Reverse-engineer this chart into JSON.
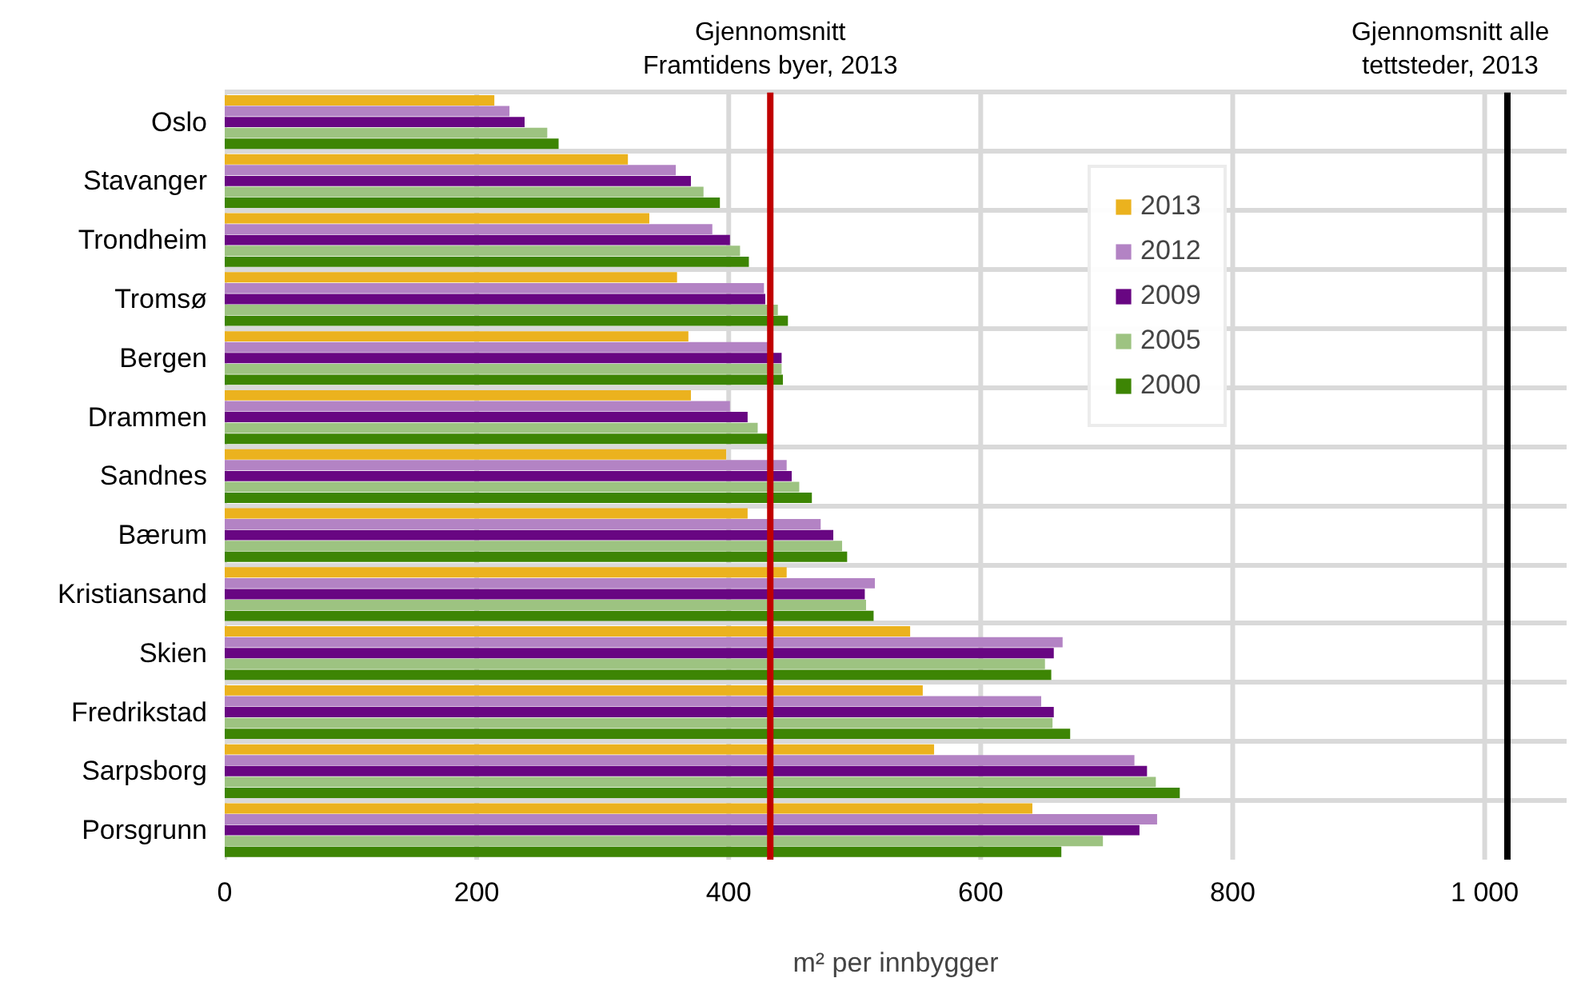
{
  "chart_data": {
    "type": "bar",
    "orientation": "horizontal",
    "xlabel": "m² per innbygger",
    "categories": [
      "Oslo",
      "Stavanger",
      "Trondheim",
      "Tromsø",
      "Bergen",
      "Drammen",
      "Sandnes",
      "Bærum",
      "Kristiansand",
      "Skien",
      "Fredrikstad",
      "Sarpsborg",
      "Porsgrunn"
    ],
    "series": [
      {
        "name": "2013",
        "color": "#ebb21e",
        "values": [
          214,
          320,
          337,
          359,
          368,
          370,
          398,
          415,
          446,
          544,
          554,
          563,
          641
        ]
      },
      {
        "name": "2012",
        "color": "#b383c4",
        "values": [
          226,
          358,
          387,
          428,
          434,
          401,
          446,
          473,
          516,
          665,
          648,
          722,
          740
        ]
      },
      {
        "name": "2009",
        "color": "#680682",
        "values": [
          238,
          370,
          401,
          429,
          442,
          415,
          450,
          483,
          508,
          658,
          658,
          732,
          726
        ]
      },
      {
        "name": "2005",
        "color": "#9dc381",
        "values": [
          256,
          380,
          409,
          439,
          442,
          423,
          456,
          490,
          509,
          651,
          657,
          739,
          697
        ]
      },
      {
        "name": "2000",
        "color": "#3d8504",
        "values": [
          265,
          393,
          416,
          447,
          443,
          434,
          466,
          494,
          515,
          656,
          671,
          758,
          664
        ]
      }
    ],
    "xlim": [
      0,
      1065
    ],
    "xticks": [
      0,
      200,
      400,
      600,
      800,
      {
        "value": 1000,
        "label": "1 000"
      }
    ],
    "ref_lines": [
      {
        "axis": "x",
        "value": 433,
        "label": "Gjennomsnitt\nFramtidens byer, 2013",
        "color": "#c00000"
      },
      {
        "axis": "x",
        "value": 1018,
        "label": "Gjennomsnitt alle\ntettsteder, 2013",
        "color": "#000000"
      }
    ],
    "grid": true,
    "legend": "top right"
  }
}
